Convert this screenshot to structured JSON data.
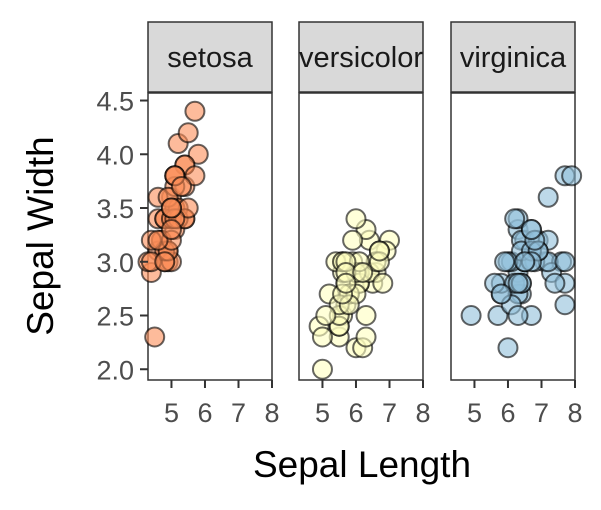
{
  "chart_data": {
    "type": "scatter",
    "facet_by": "species",
    "xlabel": "Sepal Length",
    "ylabel": "Sepal Width",
    "xlim": [
      4.3,
      8.0
    ],
    "ylim": [
      1.9,
      4.5
    ],
    "x_ticks": [
      5,
      6,
      7,
      8
    ],
    "y_ticks": [
      2.0,
      2.5,
      3.0,
      3.5,
      4.0,
      4.5
    ],
    "y_tick_labels": [
      "2.0",
      "2.5",
      "3.0",
      "3.5",
      "4.0",
      "4.5"
    ],
    "grid": false,
    "legend": "none",
    "facets": [
      {
        "label": "setosa",
        "color": "#FC8D59",
        "points": [
          [
            5.1,
            3.5
          ],
          [
            4.9,
            3.0
          ],
          [
            4.7,
            3.2
          ],
          [
            4.6,
            3.1
          ],
          [
            5.0,
            3.6
          ],
          [
            5.4,
            3.9
          ],
          [
            4.6,
            3.4
          ],
          [
            5.0,
            3.4
          ],
          [
            4.4,
            2.9
          ],
          [
            4.9,
            3.1
          ],
          [
            5.4,
            3.7
          ],
          [
            4.8,
            3.4
          ],
          [
            4.8,
            3.0
          ],
          [
            4.3,
            3.0
          ],
          [
            5.8,
            4.0
          ],
          [
            5.7,
            4.4
          ],
          [
            5.4,
            3.9
          ],
          [
            5.1,
            3.5
          ],
          [
            5.7,
            3.8
          ],
          [
            5.1,
            3.8
          ],
          [
            5.4,
            3.4
          ],
          [
            5.1,
            3.7
          ],
          [
            4.6,
            3.6
          ],
          [
            5.1,
            3.3
          ],
          [
            4.8,
            3.4
          ],
          [
            5.0,
            3.0
          ],
          [
            5.0,
            3.4
          ],
          [
            5.2,
            3.5
          ],
          [
            5.2,
            3.4
          ],
          [
            4.7,
            3.2
          ],
          [
            4.8,
            3.1
          ],
          [
            5.4,
            3.4
          ],
          [
            5.2,
            4.1
          ],
          [
            5.5,
            4.2
          ],
          [
            4.9,
            3.1
          ],
          [
            5.0,
            3.2
          ],
          [
            5.5,
            3.5
          ],
          [
            4.9,
            3.6
          ],
          [
            4.4,
            3.0
          ],
          [
            5.1,
            3.4
          ],
          [
            5.0,
            3.5
          ],
          [
            4.5,
            2.3
          ],
          [
            4.4,
            3.2
          ],
          [
            5.0,
            3.5
          ],
          [
            5.1,
            3.8
          ],
          [
            4.8,
            3.0
          ],
          [
            5.1,
            3.8
          ],
          [
            4.6,
            3.2
          ],
          [
            5.3,
            3.7
          ],
          [
            5.0,
            3.3
          ]
        ]
      },
      {
        "label": "versicolor",
        "color": "#FFFFBF",
        "points": [
          [
            7.0,
            3.2
          ],
          [
            6.4,
            3.2
          ],
          [
            6.9,
            3.1
          ],
          [
            5.5,
            2.3
          ],
          [
            6.5,
            2.8
          ],
          [
            5.7,
            2.8
          ],
          [
            6.3,
            3.3
          ],
          [
            4.9,
            2.4
          ],
          [
            6.6,
            2.9
          ],
          [
            5.2,
            2.7
          ],
          [
            5.0,
            2.0
          ],
          [
            5.9,
            3.0
          ],
          [
            6.0,
            2.2
          ],
          [
            6.1,
            2.9
          ],
          [
            5.6,
            2.9
          ],
          [
            6.7,
            3.1
          ],
          [
            5.6,
            3.0
          ],
          [
            5.8,
            2.7
          ],
          [
            6.2,
            2.2
          ],
          [
            5.6,
            2.5
          ],
          [
            5.9,
            3.2
          ],
          [
            6.1,
            2.8
          ],
          [
            6.3,
            2.5
          ],
          [
            6.1,
            2.8
          ],
          [
            6.4,
            2.9
          ],
          [
            6.6,
            3.0
          ],
          [
            6.8,
            2.8
          ],
          [
            6.7,
            3.0
          ],
          [
            6.0,
            2.9
          ],
          [
            5.7,
            2.6
          ],
          [
            5.5,
            2.4
          ],
          [
            5.5,
            2.4
          ],
          [
            5.8,
            2.7
          ],
          [
            6.0,
            2.7
          ],
          [
            5.4,
            3.0
          ],
          [
            6.0,
            3.4
          ],
          [
            6.7,
            3.1
          ],
          [
            6.3,
            2.3
          ],
          [
            5.6,
            3.0
          ],
          [
            5.5,
            2.5
          ],
          [
            5.5,
            2.6
          ],
          [
            6.1,
            3.0
          ],
          [
            5.8,
            2.6
          ],
          [
            5.0,
            2.3
          ],
          [
            5.6,
            2.7
          ],
          [
            5.7,
            3.0
          ],
          [
            5.7,
            2.9
          ],
          [
            6.2,
            2.9
          ],
          [
            5.1,
            2.5
          ],
          [
            5.7,
            2.8
          ]
        ]
      },
      {
        "label": "virginica",
        "color": "#91BFDB",
        "points": [
          [
            6.3,
            3.3
          ],
          [
            5.8,
            2.7
          ],
          [
            7.1,
            3.0
          ],
          [
            6.3,
            2.9
          ],
          [
            6.5,
            3.0
          ],
          [
            7.6,
            3.0
          ],
          [
            4.9,
            2.5
          ],
          [
            7.3,
            2.9
          ],
          [
            6.7,
            2.5
          ],
          [
            7.2,
            3.6
          ],
          [
            6.5,
            3.2
          ],
          [
            6.4,
            2.7
          ],
          [
            6.8,
            3.0
          ],
          [
            5.7,
            2.5
          ],
          [
            5.8,
            2.8
          ],
          [
            6.4,
            3.2
          ],
          [
            6.5,
            3.0
          ],
          [
            7.7,
            3.8
          ],
          [
            7.7,
            2.6
          ],
          [
            6.0,
            2.2
          ],
          [
            6.9,
            3.2
          ],
          [
            5.6,
            2.8
          ],
          [
            7.7,
            2.8
          ],
          [
            6.3,
            2.7
          ],
          [
            6.7,
            3.3
          ],
          [
            7.2,
            3.2
          ],
          [
            6.2,
            2.8
          ],
          [
            6.1,
            3.0
          ],
          [
            6.4,
            2.8
          ],
          [
            7.2,
            3.0
          ],
          [
            7.4,
            2.8
          ],
          [
            7.9,
            3.8
          ],
          [
            6.4,
            2.8
          ],
          [
            6.3,
            2.8
          ],
          [
            6.1,
            2.6
          ],
          [
            7.7,
            3.0
          ],
          [
            6.3,
            3.4
          ],
          [
            6.4,
            3.1
          ],
          [
            6.0,
            3.0
          ],
          [
            6.9,
            3.1
          ],
          [
            6.7,
            3.1
          ],
          [
            6.9,
            3.1
          ],
          [
            5.8,
            2.7
          ],
          [
            6.8,
            3.2
          ],
          [
            6.7,
            3.3
          ],
          [
            6.7,
            3.0
          ],
          [
            6.3,
            2.5
          ],
          [
            6.5,
            3.0
          ],
          [
            6.2,
            3.4
          ],
          [
            5.9,
            3.0
          ]
        ]
      }
    ]
  }
}
